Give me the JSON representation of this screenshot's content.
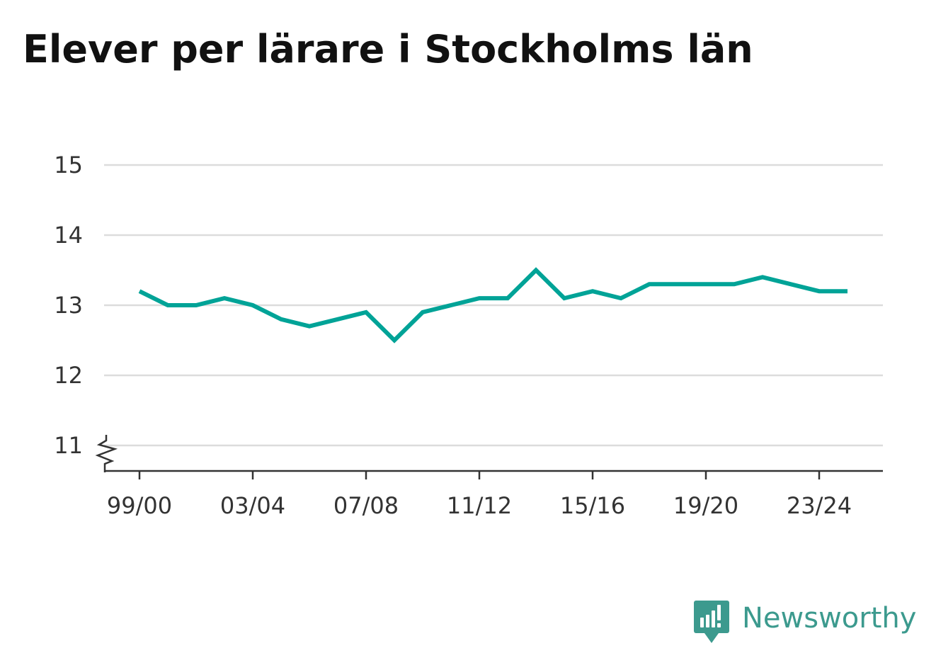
{
  "chart_data": {
    "type": "line",
    "title": "Elever per lärare i Stockholms län",
    "xlabel": "",
    "ylabel": "",
    "x": [
      "99/00",
      "00/01",
      "01/02",
      "02/03",
      "03/04",
      "04/05",
      "05/06",
      "06/07",
      "07/08",
      "08/09",
      "09/10",
      "10/11",
      "11/12",
      "12/13",
      "13/14",
      "14/15",
      "15/16",
      "16/17",
      "17/18",
      "18/19",
      "19/20",
      "20/21",
      "21/22",
      "22/23",
      "23/24",
      "24/25"
    ],
    "x_tick_labels": [
      "99/00",
      "03/04",
      "07/08",
      "11/12",
      "15/16",
      "19/20",
      "23/24"
    ],
    "series": [
      {
        "values": [
          13.2,
          13.0,
          13.0,
          13.1,
          13.0,
          12.8,
          12.7,
          12.8,
          12.9,
          12.5,
          12.9,
          13.0,
          13.1,
          13.1,
          13.5,
          13.1,
          13.2,
          13.1,
          13.3,
          13.3,
          13.3,
          13.3,
          13.4,
          13.3,
          13.2,
          13.2
        ]
      }
    ],
    "y_tick_labels": [
      "11",
      "12",
      "13",
      "14",
      "15"
    ],
    "ylim": [
      11,
      15
    ],
    "y_axis_break": true,
    "grid": "horizontal",
    "legend": "none",
    "line_color": "#00a397"
  },
  "brand": {
    "name": "Newsworthy",
    "color": "#3c9a8e",
    "logo_icon": "newsworthy-logo-icon"
  }
}
